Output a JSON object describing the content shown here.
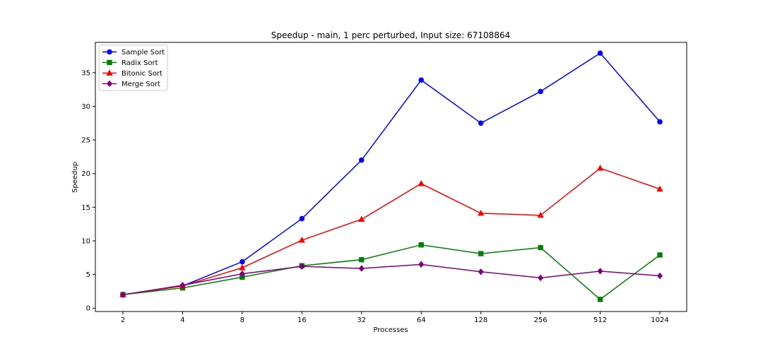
{
  "chart_data": {
    "type": "line",
    "title": "Speedup - main, 1 perc perturbed, Input size: 67108864",
    "xlabel": "Processes",
    "ylabel": "Speedup",
    "categories": [
      "2",
      "4",
      "8",
      "16",
      "32",
      "64",
      "128",
      "256",
      "512",
      "1024"
    ],
    "yticks": [
      0,
      5,
      10,
      15,
      20,
      25,
      30,
      35
    ],
    "ylim": [
      -0.5,
      39.5
    ],
    "grid": false,
    "legend_position": "top-left",
    "series": [
      {
        "name": "Sample Sort",
        "color": "#0000ff",
        "marker": "circle",
        "values": [
          2.0,
          3.3,
          6.9,
          13.3,
          22.0,
          33.9,
          27.5,
          32.2,
          37.9,
          27.7
        ]
      },
      {
        "name": "Radix Sort",
        "color": "#008000",
        "marker": "square",
        "values": [
          2.0,
          3.0,
          4.6,
          6.3,
          7.2,
          9.4,
          8.1,
          9.0,
          1.3,
          7.9
        ]
      },
      {
        "name": "Bitonic Sort",
        "color": "#ff0000",
        "marker": "triangle",
        "values": [
          2.0,
          3.3,
          6.0,
          10.1,
          13.2,
          18.5,
          14.1,
          13.8,
          20.8,
          17.7
        ]
      },
      {
        "name": "Merge Sort",
        "color": "#800080",
        "marker": "diamond",
        "values": [
          2.0,
          3.4,
          5.1,
          6.2,
          5.9,
          6.5,
          5.4,
          4.5,
          5.5,
          4.8
        ]
      }
    ]
  }
}
